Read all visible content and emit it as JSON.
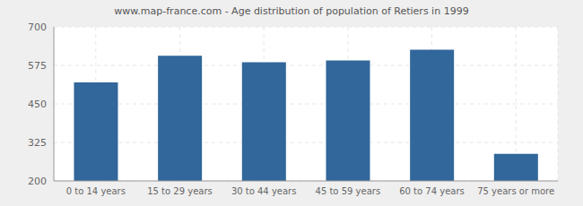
{
  "chart_data": {
    "type": "bar",
    "title": "www.map-france.com - Age distribution of population of Retiers in 1999",
    "categories": [
      "0 to 14 years",
      "15 to 29 years",
      "30 to 44 years",
      "45 to 59 years",
      "60 to 74 years",
      "75 years or more"
    ],
    "values": [
      520,
      606,
      585,
      591,
      626,
      288
    ],
    "color": "#31679a",
    "ylim": [
      200,
      700
    ],
    "yticks": [
      200,
      325,
      450,
      575,
      700
    ],
    "grid": true
  }
}
